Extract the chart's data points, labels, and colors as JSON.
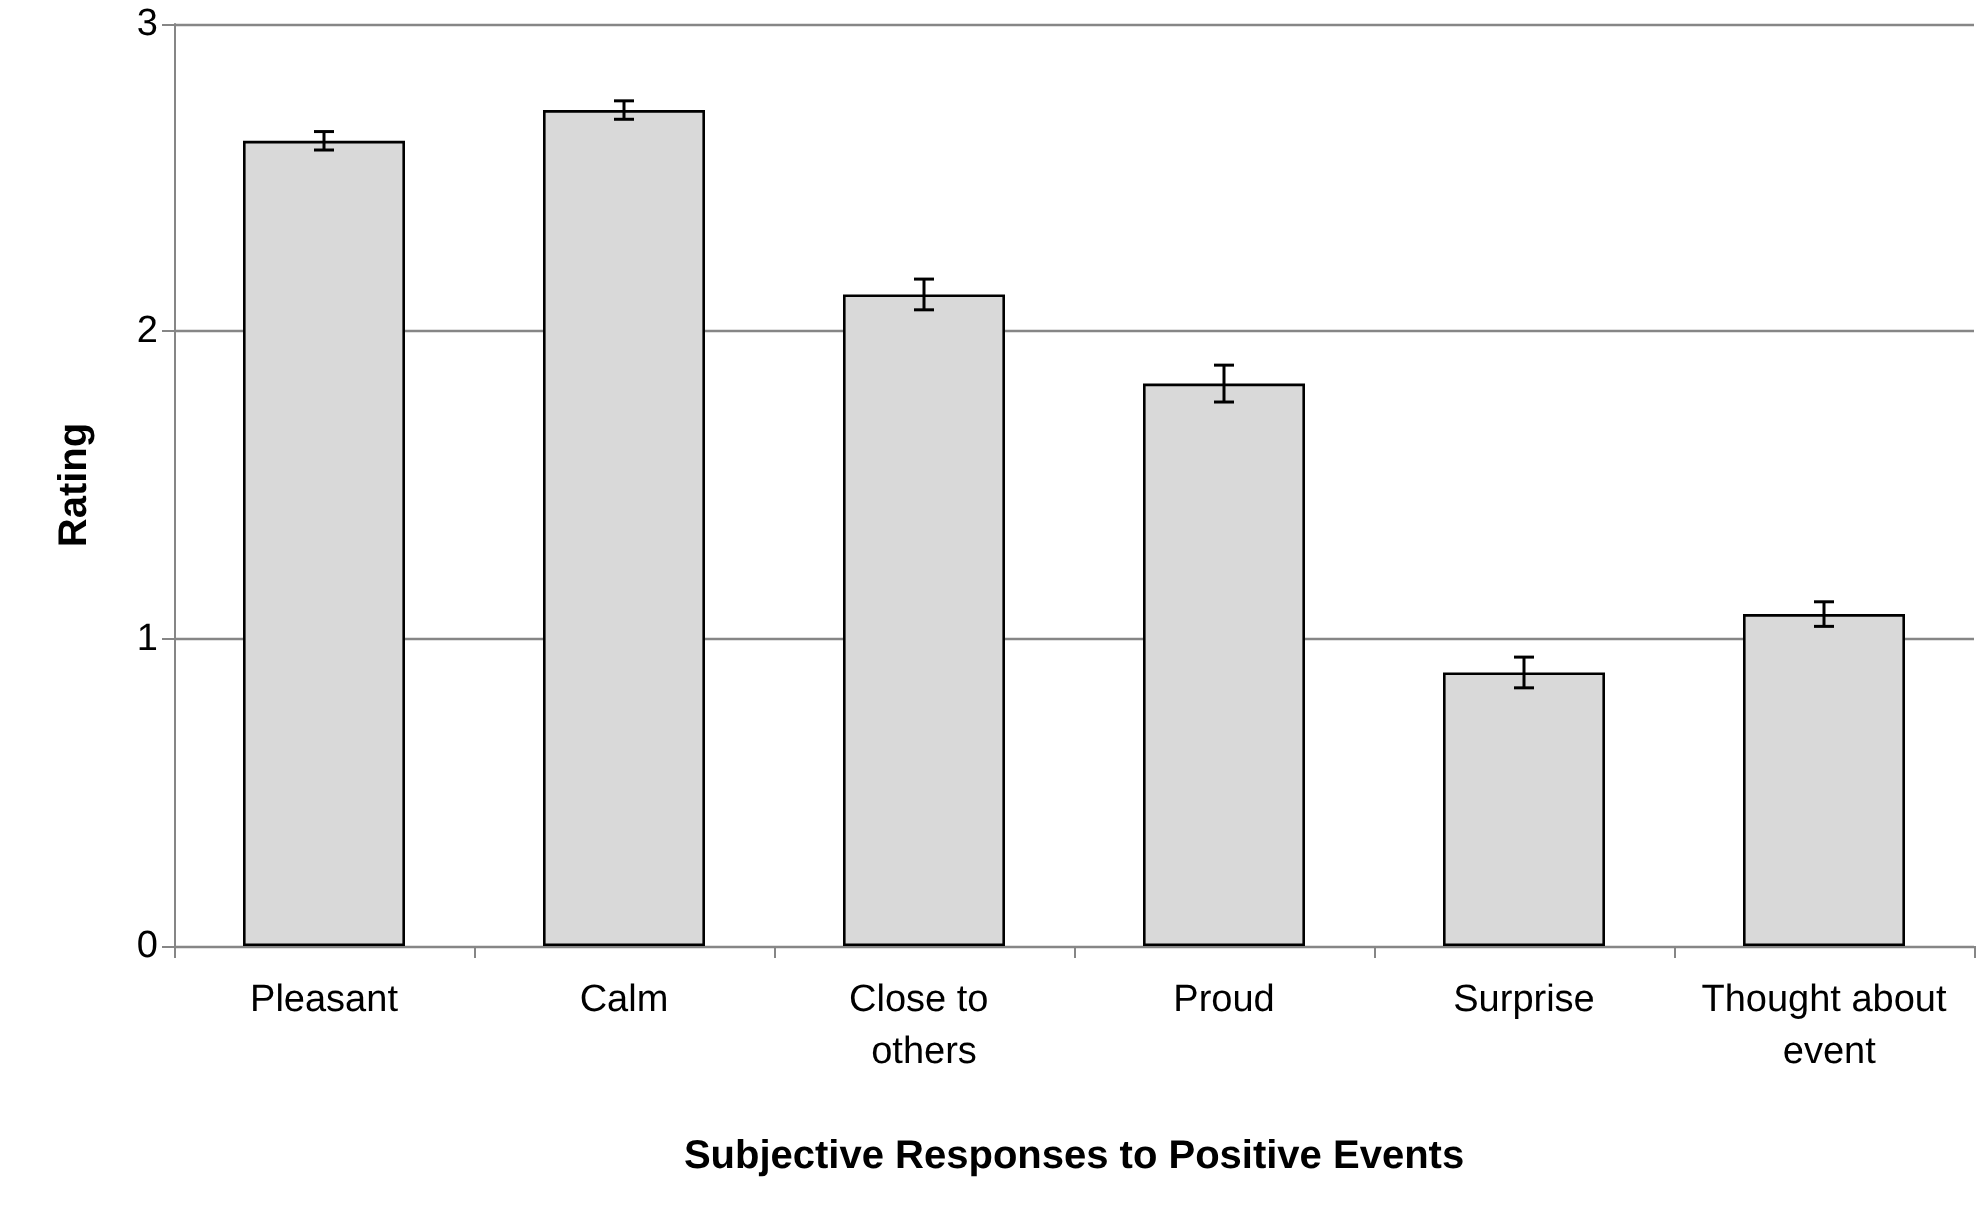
{
  "chart_data": {
    "type": "bar",
    "xlabel": "Subjective Responses to Positive Events",
    "ylabel": "Rating",
    "categories": [
      "Pleasant",
      "Calm",
      "Close to others",
      "Proud",
      "Surprise",
      "Thought about event"
    ],
    "values": [
      2.62,
      2.72,
      2.12,
      1.83,
      0.89,
      1.08
    ],
    "errors": [
      0.03,
      0.03,
      0.05,
      0.06,
      0.05,
      0.04
    ],
    "color": "#d9d9d9",
    "ylim": [
      0,
      3
    ],
    "yticks": [
      0,
      1,
      2,
      3
    ],
    "grid": "y"
  }
}
